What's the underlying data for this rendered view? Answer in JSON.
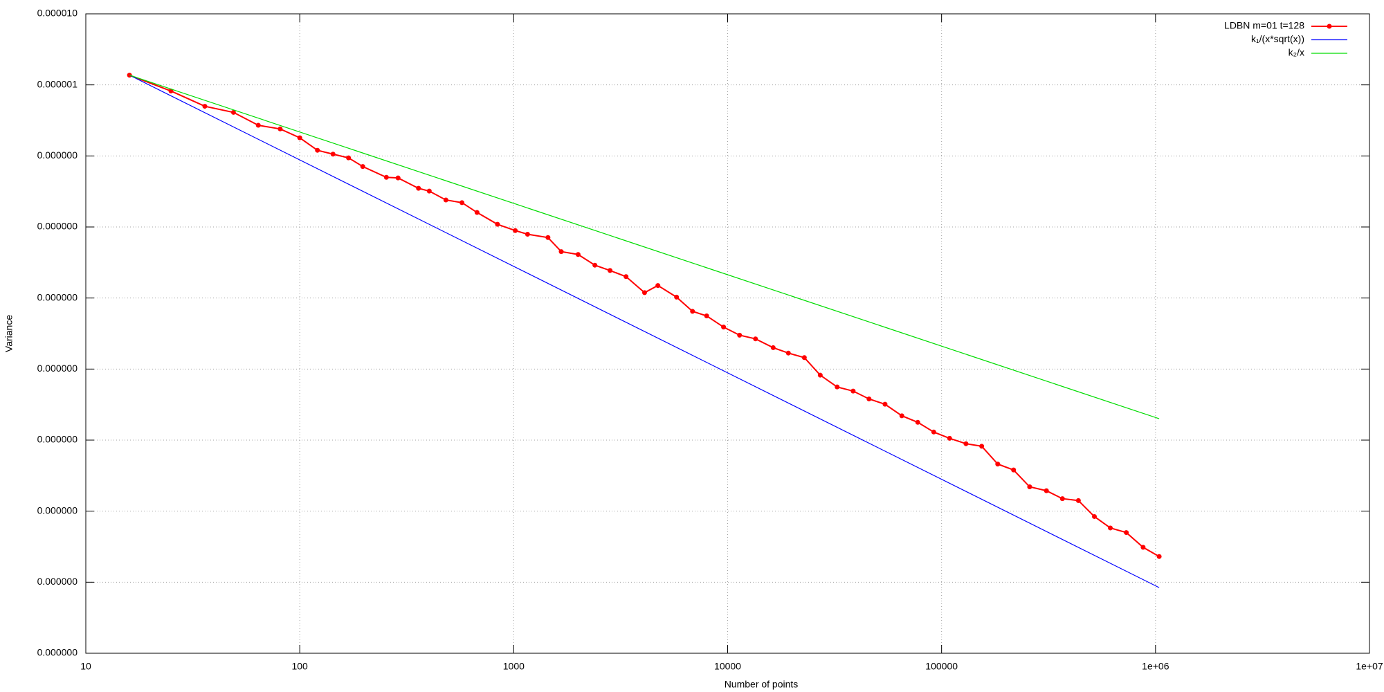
{
  "chart_data": {
    "type": "line",
    "xlabel": "Number of points",
    "ylabel": "Variance",
    "xlog": true,
    "ylog": true,
    "grid": true,
    "legend": "top-right",
    "xlim": [
      10,
      10000000
    ],
    "ylim": [
      1e-14,
      1e-05
    ],
    "xticks": [
      10,
      100,
      1000,
      10000,
      100000,
      {
        "value": 1000000,
        "label": "1e+06"
      },
      {
        "value": 10000000,
        "label": "1e+07"
      }
    ],
    "yticks": [
      {
        "value": 1e-05,
        "label": "0.000010"
      },
      {
        "value": 1e-06,
        "label": "0.000001"
      },
      {
        "value": 1e-07,
        "label": "0.000000"
      },
      {
        "value": 1e-08,
        "label": "0.000000"
      },
      {
        "value": 1e-09,
        "label": "0.000000"
      },
      {
        "value": 1e-10,
        "label": "0.000000"
      },
      {
        "value": 1e-11,
        "label": "0.000000"
      },
      {
        "value": 1e-12,
        "label": "0.000000"
      },
      {
        "value": 1e-13,
        "label": "0.000000"
      },
      {
        "value": 1e-14,
        "label": "0.000000"
      }
    ],
    "series": [
      {
        "name": "LDBN m=01 t=128",
        "color": "#ff0000",
        "markers": true,
        "x": [
          16,
          25,
          36,
          49,
          64,
          81,
          100,
          121,
          143,
          169,
          197,
          254,
          288,
          359,
          403,
          482,
          573,
          674,
          840,
          1017,
          1161,
          1446,
          1668,
          2000,
          2396,
          2820,
          3350,
          4090,
          4720,
          5770,
          6850,
          7980,
          9570,
          11370,
          13500,
          16330,
          19220,
          22830,
          27100,
          32500,
          38600,
          45800,
          54400,
          65200,
          77400,
          91900,
          109000,
          130000,
          154000,
          183000,
          217000,
          258000,
          309000,
          367000,
          436000,
          518000,
          615000,
          730000,
          875000,
          1040000
        ],
        "values": [
          1.37e-06,
          8.2e-07,
          5e-07,
          4.1e-07,
          2.7e-07,
          2.4e-07,
          1.8e-07,
          1.2e-07,
          1.06e-07,
          9.4e-08,
          7.1e-08,
          5e-08,
          4.9e-08,
          3.5e-08,
          3.2e-08,
          2.4e-08,
          2.2e-08,
          1.6e-08,
          1.09e-08,
          8.9e-09,
          7.9e-09,
          7.1e-09,
          4.5e-09,
          4.1e-09,
          2.9e-09,
          2.44e-09,
          2e-09,
          1.19e-09,
          1.5e-09,
          1.03e-09,
          6.5e-10,
          5.6e-10,
          3.9e-10,
          3e-10,
          2.66e-10,
          2e-10,
          1.68e-10,
          1.45e-10,
          8.2e-11,
          5.6e-11,
          4.9e-11,
          3.8e-11,
          3.2e-11,
          2.2e-11,
          1.78e-11,
          1.3e-11,
          1.06e-11,
          8.9e-12,
          8.2e-12,
          4.6e-12,
          3.8e-12,
          2.2e-12,
          1.94e-12,
          1.5e-12,
          1.41e-12,
          8.4e-13,
          5.8e-13,
          5e-13,
          3.1e-13,
          2.3e-13
        ]
      },
      {
        "name": "k₁/(x*sqrt(x))",
        "color": "#0000ff",
        "markers": false,
        "x": [
          16,
          1040000
        ],
        "values": [
          1.37e-06,
          8.4e-14
        ]
      },
      {
        "name": "k₂/x",
        "color": "#00dd00",
        "markers": false,
        "x": [
          16,
          1040000
        ],
        "values": [
          1.37e-06,
          2e-11
        ]
      }
    ]
  }
}
